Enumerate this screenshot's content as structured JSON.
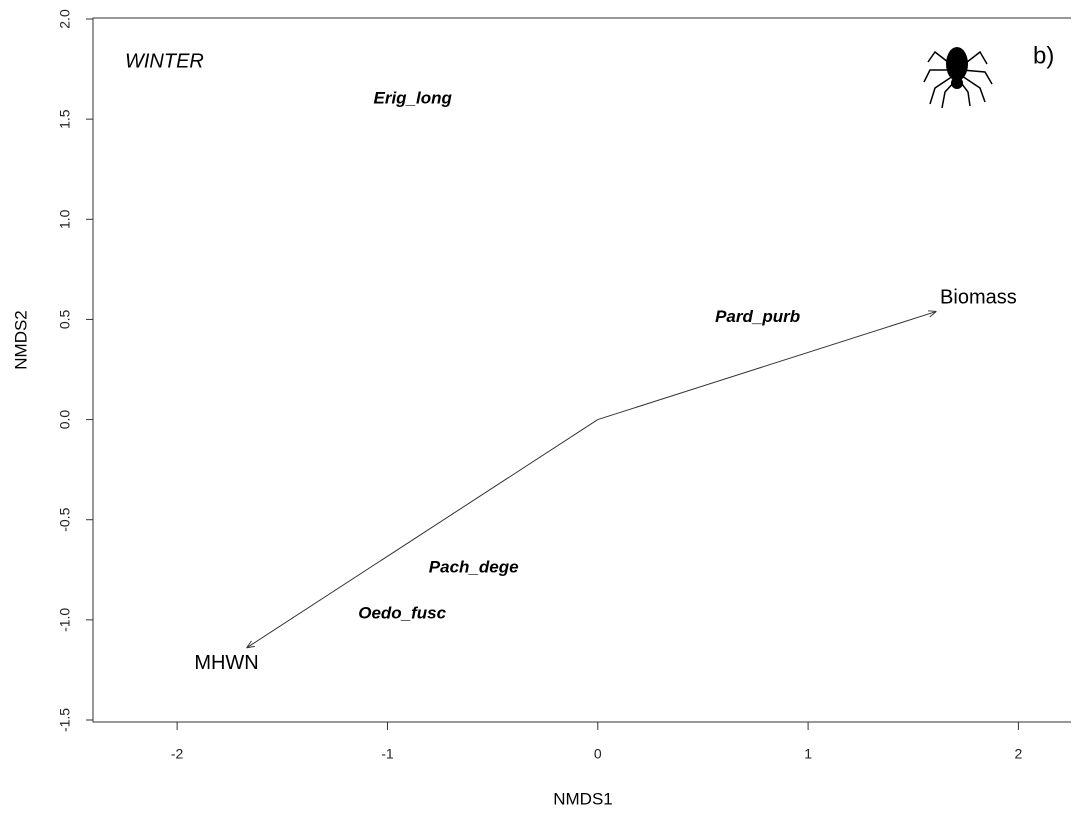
{
  "chart_data": {
    "type": "biplot",
    "panel_title": "WINTER",
    "panel_label": "b)",
    "xlabel": "NMDS1",
    "ylabel": "NMDS2",
    "xlim": [
      -2.4,
      2.25
    ],
    "ylim": [
      -1.51,
      2.0
    ],
    "xticks": [
      -2,
      -1,
      0,
      1,
      2
    ],
    "yticks": [
      {
        "value": -1.5,
        "label": "-1.5"
      },
      {
        "value": -1,
        "label": "-1.0"
      },
      {
        "value": -0.5,
        "label": "-0.5"
      },
      {
        "value": 0,
        "label": "0.0"
      },
      {
        "value": 0.5,
        "label": "0.5"
      },
      {
        "value": 1,
        "label": "1.0"
      },
      {
        "value": 1.5,
        "label": "1.5"
      },
      {
        "value": 2,
        "label": "2.0"
      }
    ],
    "species": {
      "labels": [
        "Erig_long",
        "Pard_purb",
        "Pach_dege",
        "Oedo_fusc"
      ],
      "x": [
        -0.88,
        0.76,
        -0.59,
        -0.93
      ],
      "y": [
        1.6,
        0.51,
        -0.74,
        -0.97
      ]
    },
    "vectors": {
      "labels": [
        "Biomass",
        "MHWN"
      ],
      "x": [
        1.61,
        -1.67
      ],
      "y": [
        0.54,
        -1.14
      ]
    }
  }
}
